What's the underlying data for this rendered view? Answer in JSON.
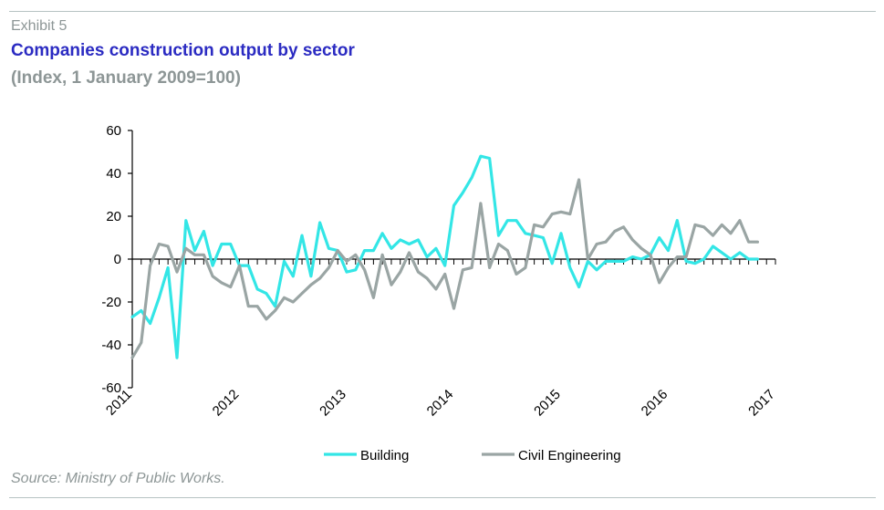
{
  "header": {
    "exhibit": "Exhibit 5",
    "title": "Companies construction output by sector",
    "subtitle": "(Index, 1 January 2009=100)"
  },
  "footer": {
    "source": "Source: Ministry of Public Works."
  },
  "chart_data": {
    "type": "line",
    "title": "Companies construction output by sector",
    "subtitle": "(Index, 1 January 2009=100)",
    "xlabel": "",
    "ylabel": "",
    "x_ticks": [
      "2011",
      "2012",
      "2013",
      "2014",
      "2015",
      "2016",
      "2017"
    ],
    "xlim": [
      2011,
      2017
    ],
    "y_ticks": [
      60,
      40,
      20,
      0,
      -20,
      -40,
      -60
    ],
    "ylim": [
      -60,
      60
    ],
    "grid": false,
    "legend_position": "bottom",
    "x": [
      2011.0,
      2011.083,
      2011.167,
      2011.25,
      2011.333,
      2011.417,
      2011.5,
      2011.583,
      2011.667,
      2011.75,
      2011.833,
      2011.917,
      2012.0,
      2012.083,
      2012.167,
      2012.25,
      2012.333,
      2012.417,
      2012.5,
      2012.583,
      2012.667,
      2012.75,
      2012.833,
      2012.917,
      2013.0,
      2013.083,
      2013.167,
      2013.25,
      2013.333,
      2013.417,
      2013.5,
      2013.583,
      2013.667,
      2013.75,
      2013.833,
      2013.917,
      2014.0,
      2014.083,
      2014.167,
      2014.25,
      2014.333,
      2014.417,
      2014.5,
      2014.583,
      2014.667,
      2014.75,
      2014.833,
      2014.917,
      2015.0,
      2015.083,
      2015.167,
      2015.25,
      2015.333,
      2015.417,
      2015.5,
      2015.583,
      2015.667,
      2015.75,
      2015.833,
      2015.917,
      2016.0,
      2016.083,
      2016.167,
      2016.25,
      2016.333,
      2016.417,
      2016.5,
      2016.583,
      2016.667,
      2016.75,
      2016.833
    ],
    "series": [
      {
        "name": "Building",
        "color": "#33e6e6",
        "values": [
          -27,
          -24,
          -30,
          -18,
          -4,
          -46,
          18,
          4,
          13,
          -3,
          7,
          7,
          -3,
          -3,
          -14,
          -16,
          -22,
          -1,
          -8,
          11,
          -8,
          17,
          5,
          4,
          -6,
          -5,
          4,
          4,
          12,
          5,
          9,
          7,
          9,
          1,
          5,
          -3,
          25,
          31,
          38,
          48,
          47,
          11,
          18,
          18,
          12,
          11,
          10,
          -2,
          12,
          -4,
          -13,
          -1,
          -5,
          -1,
          -1,
          -1,
          1,
          0,
          2,
          10,
          4,
          18,
          -1,
          -2,
          0,
          6,
          3,
          0,
          3,
          0,
          0
        ]
      },
      {
        "name": "Civil Engineering",
        "color": "#9aa5a4",
        "values": [
          -46,
          -39,
          -3,
          7,
          6,
          -6,
          5,
          2,
          2,
          -8,
          -11,
          -13,
          -3,
          -22,
          -22,
          -28,
          -24,
          -18,
          -20,
          -16,
          -12,
          -9,
          -4,
          4,
          -1,
          2,
          -5,
          -18,
          2,
          -12,
          -6,
          3,
          -6,
          -9,
          -14,
          -7,
          -23,
          -5,
          -4,
          26,
          -4,
          7,
          4,
          -7,
          -4,
          16,
          15,
          21,
          22,
          21,
          37,
          0,
          7,
          8,
          13,
          15,
          9,
          5,
          2,
          -11,
          -4,
          1,
          1,
          16,
          15,
          11,
          16,
          12,
          18,
          8,
          8
        ]
      }
    ]
  }
}
